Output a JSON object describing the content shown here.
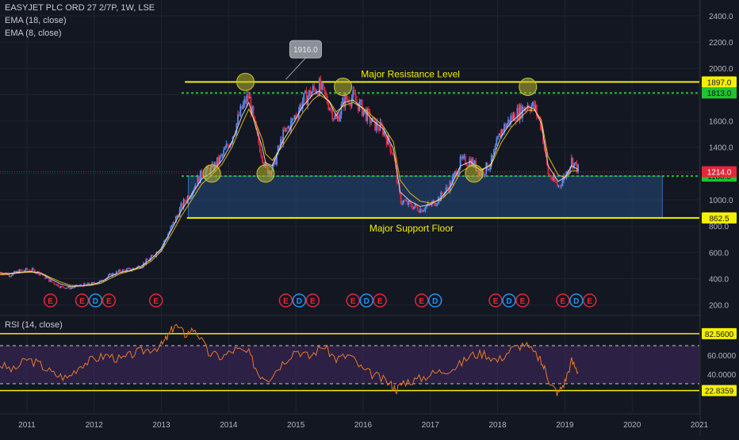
{
  "header": {
    "symbol_line": "EASYJET PLC ORD 27 2/7P, 1W, LSE",
    "indicators": [
      "EMA (18, close)",
      "EMA (8, close)"
    ]
  },
  "rsi_panel": {
    "label": "RSI (14, close)"
  },
  "colors": {
    "background": "#131722",
    "candle_up": "#5b8cf0",
    "candle_down": "#e0293a",
    "ema_fast": "#e6e6e6",
    "ema_slow": "#f5c518",
    "resistance": "#f5f000",
    "dotted_level": "#21c32d",
    "zone_fill": "#274a7d",
    "rsi_line": "#e8792a",
    "rsi_band": "#4b2d6e",
    "price_tag": "#e0293a",
    "earnings": "#e0293a",
    "dividend": "#2196f3"
  },
  "chart_data": [
    {
      "type": "candlestick",
      "title": "EASYJET PLC ORD 27 2/7P, 1W, LSE",
      "x_ticks": [
        "2011",
        "2012",
        "2013",
        "2014",
        "2015",
        "2016",
        "2017",
        "2018",
        "2019",
        "2020",
        "2021"
      ],
      "y_ticks": [
        "2400.0",
        "2200.0",
        "2000.0",
        "1800.0",
        "1600.0",
        "1400.0",
        "1200.0",
        "1000.0",
        "800.0",
        "600.0",
        "400.0",
        "200.0"
      ],
      "ylim": [
        120,
        2520
      ],
      "xlim": [
        2010.6,
        2021.0
      ],
      "price_series": {
        "x": [
          2010.6,
          2010.75,
          2010.9,
          2011.05,
          2011.2,
          2011.35,
          2011.5,
          2011.65,
          2011.8,
          2011.95,
          2012.1,
          2012.25,
          2012.4,
          2012.55,
          2012.7,
          2012.85,
          2013.0,
          2013.15,
          2013.3,
          2013.45,
          2013.6,
          2013.75,
          2013.9,
          2014.05,
          2014.2,
          2014.3,
          2014.4,
          2014.5,
          2014.55,
          2014.65,
          2014.8,
          2014.95,
          2015.1,
          2015.25,
          2015.35,
          2015.5,
          2015.6,
          2015.72,
          2015.85,
          2016.0,
          2016.15,
          2016.3,
          2016.45,
          2016.55,
          2016.7,
          2016.85,
          2017.0,
          2017.15,
          2017.3,
          2017.45,
          2017.6,
          2017.75,
          2017.9,
          2018.05,
          2018.2,
          2018.35,
          2018.45,
          2018.55,
          2018.65,
          2018.75,
          2018.9,
          2019.0,
          2019.1,
          2019.2
        ],
        "values": [
          450,
          430,
          460,
          470,
          440,
          380,
          340,
          330,
          350,
          360,
          380,
          430,
          460,
          470,
          500,
          560,
          640,
          790,
          950,
          1070,
          1200,
          1230,
          1330,
          1480,
          1700,
          1790,
          1520,
          1340,
          1230,
          1230,
          1480,
          1600,
          1750,
          1830,
          1860,
          1720,
          1600,
          1760,
          1780,
          1680,
          1580,
          1530,
          1350,
          1000,
          960,
          930,
          960,
          1020,
          1120,
          1290,
          1300,
          1200,
          1280,
          1520,
          1620,
          1680,
          1730,
          1700,
          1560,
          1200,
          1100,
          1180,
          1300,
          1230
        ]
      },
      "ema_fast_values": [
        440,
        440,
        450,
        455,
        445,
        400,
        360,
        340,
        345,
        355,
        375,
        420,
        450,
        465,
        495,
        550,
        630,
        770,
        920,
        1040,
        1160,
        1210,
        1300,
        1440,
        1640,
        1740,
        1560,
        1400,
        1280,
        1260,
        1440,
        1570,
        1710,
        1800,
        1830,
        1740,
        1640,
        1740,
        1760,
        1690,
        1600,
        1540,
        1390,
        1060,
        990,
        950,
        965,
        1010,
        1100,
        1260,
        1290,
        1220,
        1270,
        1480,
        1590,
        1660,
        1710,
        1690,
        1580,
        1260,
        1140,
        1170,
        1260,
        1230
      ],
      "ema_slow_values": [
        430,
        435,
        445,
        450,
        445,
        410,
        375,
        350,
        345,
        350,
        365,
        405,
        440,
        460,
        485,
        535,
        610,
        740,
        880,
        1000,
        1120,
        1190,
        1270,
        1400,
        1580,
        1690,
        1590,
        1460,
        1350,
        1300,
        1410,
        1530,
        1660,
        1760,
        1800,
        1750,
        1670,
        1720,
        1740,
        1700,
        1630,
        1560,
        1440,
        1150,
        1050,
        990,
        975,
        1000,
        1070,
        1210,
        1260,
        1230,
        1260,
        1430,
        1550,
        1630,
        1680,
        1680,
        1610,
        1330,
        1190,
        1170,
        1220,
        1220
      ],
      "highlights": [
        {
          "x": 2013.75,
          "y": 1200
        },
        {
          "x": 2014.25,
          "y": 1897
        },
        {
          "x": 2014.55,
          "y": 1200
        },
        {
          "x": 2015.7,
          "y": 1860
        },
        {
          "x": 2017.65,
          "y": 1200
        },
        {
          "x": 2018.45,
          "y": 1860
        }
      ],
      "levels": [
        {
          "name": "Major Resistance Level",
          "value": 1897.0,
          "tag": "1897.0",
          "style": "solid"
        },
        {
          "name": "",
          "value": 1813.0,
          "tag": "1813.0",
          "style": "dotted"
        },
        {
          "name": "",
          "value": 1180.5,
          "tag": "1180.5",
          "style": "dotted"
        },
        {
          "name": "Major Support Floor",
          "value": 862.5,
          "tag": "862.5",
          "style": "solid"
        }
      ],
      "zone": {
        "from": 862.5,
        "to": 1180.5,
        "x_start": 2013.4,
        "x_end": 2020.45
      },
      "last_price": {
        "value": 1214.0,
        "tag": "1214.0"
      },
      "annotation": {
        "text": "1916.0",
        "x": 2014.85,
        "y": 1916.0
      },
      "event_markers": [
        {
          "label": "E",
          "x": 2011.35,
          "kind": "earnings"
        },
        {
          "label": "E",
          "x": 2011.82,
          "kind": "earnings"
        },
        {
          "label": "D",
          "x": 2012.02,
          "kind": "dividend"
        },
        {
          "label": "E",
          "x": 2012.22,
          "kind": "earnings"
        },
        {
          "label": "E",
          "x": 2012.92,
          "kind": "earnings"
        },
        {
          "label": "E",
          "x": 2014.85,
          "kind": "earnings"
        },
        {
          "label": "D",
          "x": 2015.05,
          "kind": "dividend"
        },
        {
          "label": "E",
          "x": 2015.25,
          "kind": "earnings"
        },
        {
          "label": "E",
          "x": 2015.85,
          "kind": "earnings"
        },
        {
          "label": "D",
          "x": 2016.05,
          "kind": "dividend"
        },
        {
          "label": "E",
          "x": 2016.25,
          "kind": "earnings"
        },
        {
          "label": "E",
          "x": 2016.87,
          "kind": "earnings"
        },
        {
          "label": "D",
          "x": 2017.07,
          "kind": "dividend"
        },
        {
          "label": "E",
          "x": 2017.97,
          "kind": "earnings"
        },
        {
          "label": "D",
          "x": 2018.17,
          "kind": "dividend"
        },
        {
          "label": "E",
          "x": 2018.37,
          "kind": "earnings"
        },
        {
          "label": "E",
          "x": 2018.97,
          "kind": "earnings"
        },
        {
          "label": "D",
          "x": 2019.17,
          "kind": "dividend"
        },
        {
          "label": "E",
          "x": 2019.37,
          "kind": "earnings"
        }
      ]
    },
    {
      "type": "line",
      "title": "RSI (14, close)",
      "y_ticks": [
        "60.0000",
        "40.0000"
      ],
      "ylim": [
        0,
        100
      ],
      "bands": {
        "upper": 70,
        "lower": 30
      },
      "levels": [
        {
          "value": 82.56,
          "tag": "82.5600"
        },
        {
          "value": 22.8359,
          "tag": "22.8359"
        }
      ],
      "series": {
        "x": [
          2010.6,
          2010.8,
          2011.0,
          2011.2,
          2011.4,
          2011.6,
          2011.8,
          2012.0,
          2012.2,
          2012.4,
          2012.6,
          2012.8,
          2013.0,
          2013.1,
          2013.2,
          2013.35,
          2013.5,
          2013.7,
          2013.9,
          2014.1,
          2014.3,
          2014.45,
          2014.6,
          2014.8,
          2015.0,
          2015.2,
          2015.4,
          2015.6,
          2015.8,
          2016.0,
          2016.2,
          2016.4,
          2016.5,
          2016.6,
          2016.8,
          2017.0,
          2017.2,
          2017.4,
          2017.6,
          2017.8,
          2018.0,
          2018.2,
          2018.4,
          2018.6,
          2018.7,
          2018.8,
          2018.9,
          2019.0,
          2019.1,
          2019.2
        ],
        "values": [
          50,
          44,
          56,
          50,
          40,
          36,
          50,
          56,
          60,
          55,
          62,
          66,
          70,
          80,
          92,
          82,
          88,
          62,
          58,
          66,
          62,
          40,
          36,
          52,
          66,
          58,
          70,
          56,
          60,
          44,
          38,
          30,
          24,
          32,
          34,
          40,
          44,
          48,
          60,
          62,
          54,
          66,
          72,
          58,
          46,
          28,
          20,
          32,
          54,
          42
        ]
      }
    }
  ]
}
